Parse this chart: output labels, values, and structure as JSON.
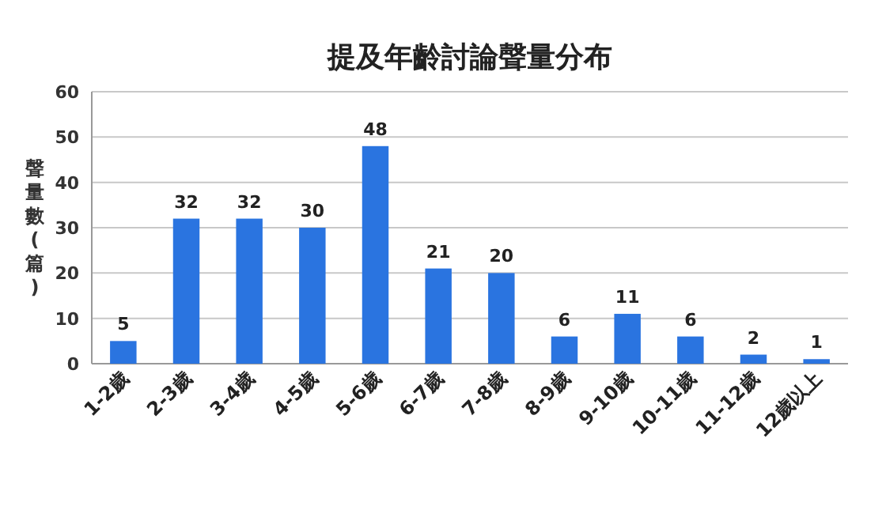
{
  "chart_data": {
    "type": "bar",
    "title": "提及年齡討論聲量分布",
    "ylabel": "聲量數(篇)",
    "categories": [
      "1-2歲",
      "2-3歲",
      "3-4歲",
      "4-5歲",
      "5-6歲",
      "6-7歲",
      "7-8歲",
      "8-9歲",
      "9-10歲",
      "10-11歲",
      "11-12歲",
      "12歲以上"
    ],
    "values": [
      5,
      32,
      32,
      30,
      48,
      21,
      20,
      6,
      11,
      6,
      2,
      1
    ],
    "color": "#2a74e0",
    "ylim": [
      0,
      60
    ],
    "yticks": [
      0,
      10,
      20,
      30,
      40,
      50,
      60
    ],
    "grid": "y",
    "data_labels": true
  }
}
